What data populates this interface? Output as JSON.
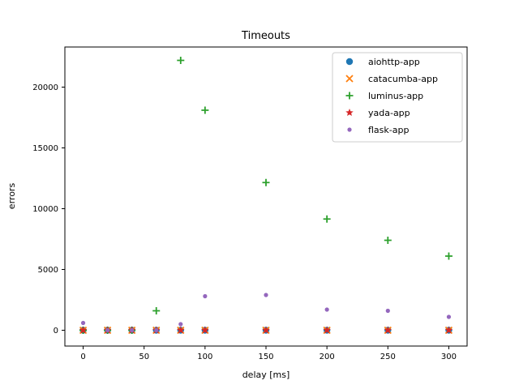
{
  "chart_data": {
    "type": "scatter",
    "title": "Timeouts",
    "xlabel": "delay [ms]",
    "ylabel": "errors",
    "xlim": [
      -15,
      315
    ],
    "ylim": [
      -1300,
      23300
    ],
    "xticks": [
      0,
      50,
      100,
      150,
      200,
      250,
      300
    ],
    "yticks": [
      0,
      5000,
      10000,
      15000,
      20000
    ],
    "grid": false,
    "legend_position": "top-right",
    "series": [
      {
        "name": "aiohttp-app",
        "marker": "circle",
        "color": "#1f77b4",
        "x": [
          0,
          20,
          40,
          60,
          80,
          100,
          150,
          200,
          250,
          300
        ],
        "y": [
          0,
          0,
          0,
          0,
          0,
          0,
          0,
          0,
          0,
          0
        ]
      },
      {
        "name": "catacumba-app",
        "marker": "x",
        "color": "#ff7f0e",
        "x": [
          0,
          20,
          40,
          60,
          80,
          100,
          150,
          200,
          250,
          300
        ],
        "y": [
          0,
          0,
          0,
          0,
          0,
          0,
          0,
          0,
          0,
          0
        ]
      },
      {
        "name": "luminus-app",
        "marker": "plus",
        "color": "#2ca02c",
        "x": [
          0,
          20,
          40,
          60,
          80,
          100,
          150,
          200,
          250,
          300
        ],
        "y": [
          0,
          0,
          0,
          1600,
          22200,
          18100,
          12150,
          9150,
          7400,
          6100
        ]
      },
      {
        "name": "yada-app",
        "marker": "star",
        "color": "#d62728",
        "x": [
          0,
          20,
          40,
          60,
          80,
          100,
          150,
          200,
          250,
          300
        ],
        "y": [
          0,
          0,
          0,
          0,
          0,
          0,
          0,
          0,
          0,
          0
        ]
      },
      {
        "name": "flask-app",
        "marker": "dot",
        "color": "#9467bd",
        "x": [
          0,
          20,
          40,
          60,
          80,
          100,
          150,
          200,
          250,
          300
        ],
        "y": [
          600,
          0,
          0,
          0,
          500,
          2800,
          2900,
          1700,
          1600,
          1100
        ]
      }
    ]
  }
}
